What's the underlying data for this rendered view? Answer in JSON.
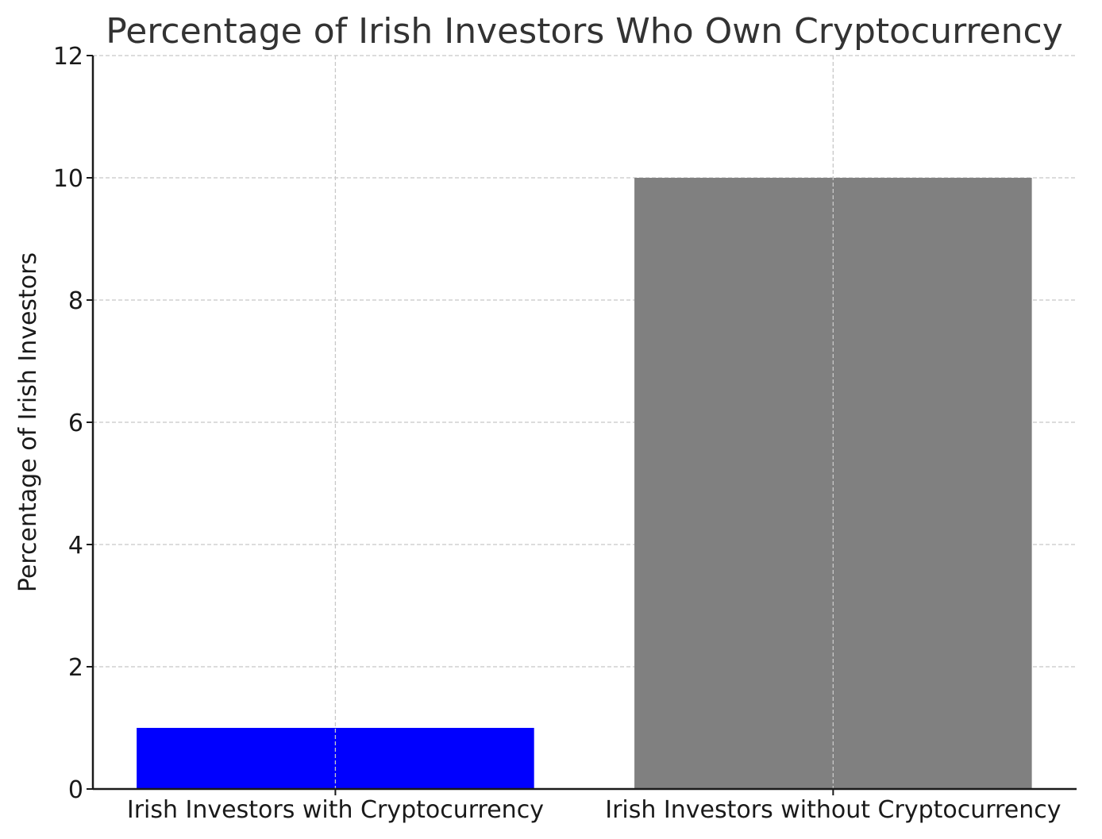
{
  "chart_data": {
    "type": "bar",
    "title": "Percentage of Irish Investors Who Own Cryptocurrency",
    "xlabel": "",
    "ylabel": "Percentage of Irish Investors",
    "categories": [
      "Irish Investors with Cryptocurrency",
      "Irish Investors without Cryptocurrency"
    ],
    "values": [
      1,
      10
    ],
    "colors": [
      "#0000ff",
      "#808080"
    ],
    "ylim": [
      0,
      12
    ],
    "yticks": [
      "0",
      "2",
      "4",
      "6",
      "8",
      "10",
      "12"
    ],
    "grid": true,
    "grid_color": "#c8c8c8"
  }
}
